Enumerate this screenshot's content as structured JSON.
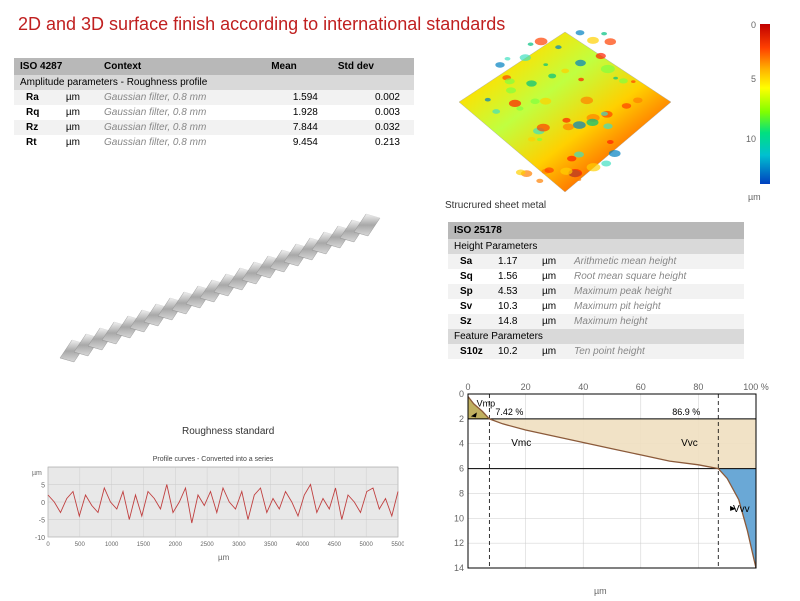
{
  "title": "2D and 3D surface finish according to international standards",
  "iso4287": {
    "heading": "ISO 4287",
    "section": "Amplitude parameters - Roughness profile",
    "columns": [
      "",
      "",
      "Context",
      "Mean",
      "Std dev"
    ],
    "context_text": "Gaussian filter, 0.8 mm",
    "unit": "µm",
    "rows": [
      {
        "param": "Ra",
        "mean": "1.594",
        "sd": "0.002"
      },
      {
        "param": "Rq",
        "mean": "1.928",
        "sd": "0.003"
      },
      {
        "param": "Rz",
        "mean": "7.844",
        "sd": "0.032"
      },
      {
        "param": "Rt",
        "mean": "9.454",
        "sd": "0.213"
      }
    ]
  },
  "render3d": {
    "caption": "Strucrured sheet metal",
    "colorbar": {
      "ticks": [
        "0",
        "5",
        "10"
      ],
      "unit": "µm"
    }
  },
  "iso25178": {
    "heading": "ISO 25178",
    "sections": [
      {
        "name": "Height Parameters",
        "rows": [
          {
            "p": "Sa",
            "v": "1.17",
            "u": "µm",
            "d": "Arithmetic mean height"
          },
          {
            "p": "Sq",
            "v": "1.56",
            "u": "µm",
            "d": "Root mean square height"
          },
          {
            "p": "Sp",
            "v": "4.53",
            "u": "µm",
            "d": "Maximum peak height"
          },
          {
            "p": "Sv",
            "v": "10.3",
            "u": "µm",
            "d": "Maximum pit height"
          },
          {
            "p": "Sz",
            "v": "14.8",
            "u": "µm",
            "d": "Maximum height"
          }
        ]
      },
      {
        "name": "Feature Parameters",
        "rows": [
          {
            "p": "S10z",
            "v": "10.2",
            "u": "µm",
            "d": "Ten point height"
          }
        ]
      }
    ]
  },
  "roughness_standard": {
    "caption": "Roughness standard"
  },
  "profile_chart": {
    "title": "Profile curves - Converted into a series",
    "y_unit": "µm",
    "x_unit": "µm",
    "xlim": [
      0,
      5500
    ],
    "x_step": 500,
    "ylim": [
      -10,
      10
    ],
    "y_ticks": [
      -10,
      -5,
      0,
      5
    ],
    "line_color": "#c04040",
    "grid_color": "#c8c8c8",
    "plot_bg": "#e8e8e8",
    "series": [
      2,
      0,
      -3,
      1,
      3,
      -4,
      2,
      -1,
      -3,
      4,
      0,
      -2,
      3,
      -5,
      2,
      -4,
      3,
      1,
      -2,
      5,
      -3,
      0,
      4,
      -6,
      2,
      -1,
      3,
      -3,
      4,
      0,
      -2,
      3,
      -5,
      2,
      4,
      -3,
      1,
      -2,
      3,
      0,
      -4,
      2,
      5,
      -3,
      1,
      -2,
      4,
      -5,
      2,
      0,
      -3,
      3,
      4,
      -2,
      1,
      -4,
      3
    ]
  },
  "abbott": {
    "xlim": [
      0,
      100
    ],
    "x_step": 20,
    "x_unit": "%",
    "ylim": [
      0,
      14
    ],
    "y_step": 2,
    "y_unit": "µm",
    "grid_color": "#cccccc",
    "curve_color": "#8b5a3a",
    "area_vmc_color": "#f0dfc0",
    "area_vmp_color": "#c0b060",
    "area_vvv_color": "#6aa8d6",
    "mr1_dash_x": 7.42,
    "mr2_dash_x": 86.9,
    "top_line_y": 2.0,
    "bot_line_y": 6.0,
    "labels": {
      "Vmp": "Vmp",
      "Vmc": "Vmc",
      "Vvc": "Vvc",
      "Vvv": "Vvv",
      "pct1": "7.42 %",
      "pct2": "86.9 %"
    },
    "curve_points": [
      [
        0,
        0.2
      ],
      [
        2,
        0.8
      ],
      [
        5,
        1.4
      ],
      [
        7.42,
        2.0
      ],
      [
        12,
        2.4
      ],
      [
        20,
        2.9
      ],
      [
        30,
        3.4
      ],
      [
        40,
        3.9
      ],
      [
        50,
        4.4
      ],
      [
        60,
        4.9
      ],
      [
        70,
        5.4
      ],
      [
        80,
        5.7
      ],
      [
        86.9,
        6.0
      ],
      [
        90,
        6.8
      ],
      [
        94,
        8.5
      ],
      [
        97,
        11.0
      ],
      [
        99,
        13.0
      ],
      [
        100,
        14.0
      ]
    ]
  }
}
